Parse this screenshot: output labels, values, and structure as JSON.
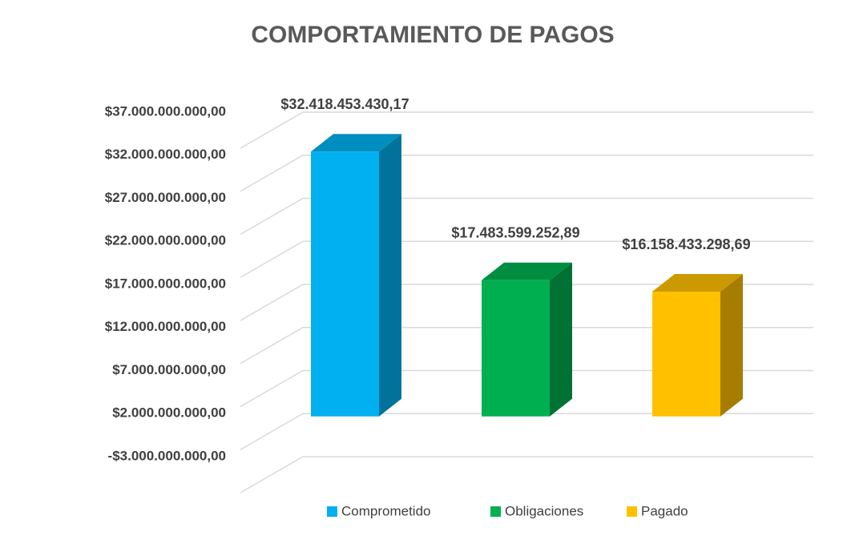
{
  "chart_data": {
    "type": "bar3d",
    "title": "COMPORTAMIENTO DE PAGOS",
    "series": [
      {
        "name": "Comprometido",
        "color": "#00b0f0",
        "values": [
          32418453430.17
        ],
        "value_labels": [
          "$32.418.453.430,17"
        ]
      },
      {
        "name": "Obligaciones",
        "color": "#00b050",
        "values": [
          17483599252.89
        ],
        "value_labels": [
          "$17.483.599.252,89"
        ]
      },
      {
        "name": "Pagado",
        "color": "#ffc000",
        "values": [
          16158433298.69
        ],
        "value_labels": [
          "$16.158.433.298,69"
        ]
      }
    ],
    "ylim": [
      -3000000000,
      37000000000
    ],
    "yticks": [
      {
        "value": -3000000000,
        "label": "-$3.000.000.000,00"
      },
      {
        "value": 2000000000,
        "label": "$2.000.000.000,00"
      },
      {
        "value": 7000000000,
        "label": "$7.000.000.000,00"
      },
      {
        "value": 12000000000,
        "label": "$12.000.000.000,00"
      },
      {
        "value": 17000000000,
        "label": "$17.000.000.000,00"
      },
      {
        "value": 22000000000,
        "label": "$22.000.000.000,00"
      },
      {
        "value": 27000000000,
        "label": "$27.000.000.000,00"
      },
      {
        "value": 32000000000,
        "label": "$32.000.000.000,00"
      },
      {
        "value": 37000000000,
        "label": "$37.000.000.000,00"
      }
    ],
    "grid": true,
    "legend": "bottom"
  }
}
